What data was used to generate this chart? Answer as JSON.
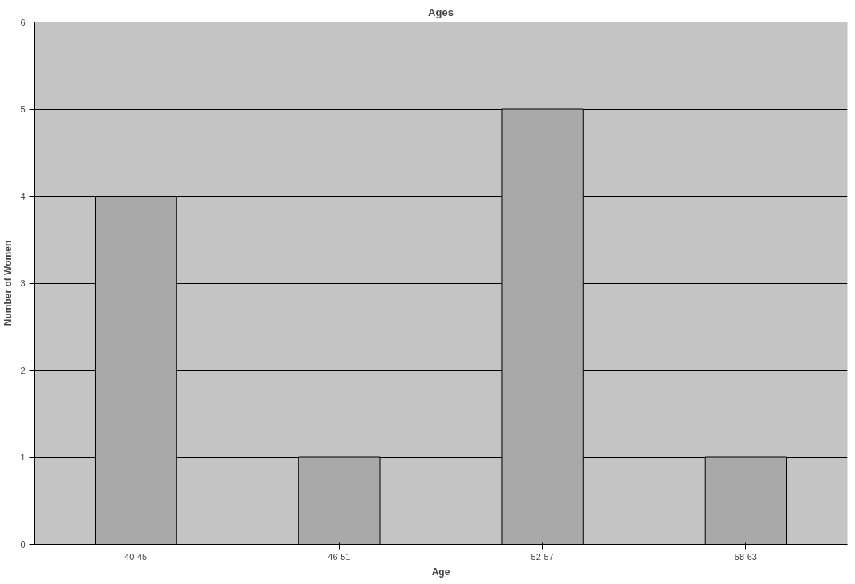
{
  "chart_data": {
    "type": "bar",
    "title": "Ages",
    "xlabel": "Age",
    "ylabel": "Number of Women",
    "categories": [
      "40-45",
      "46-51",
      "52-57",
      "58-63"
    ],
    "values": [
      4,
      1,
      5,
      1
    ],
    "color": "#a9a9a9",
    "ylim": [
      0,
      6
    ],
    "yticks": [
      0,
      1,
      2,
      3,
      4,
      5,
      6
    ],
    "grid": "y"
  }
}
